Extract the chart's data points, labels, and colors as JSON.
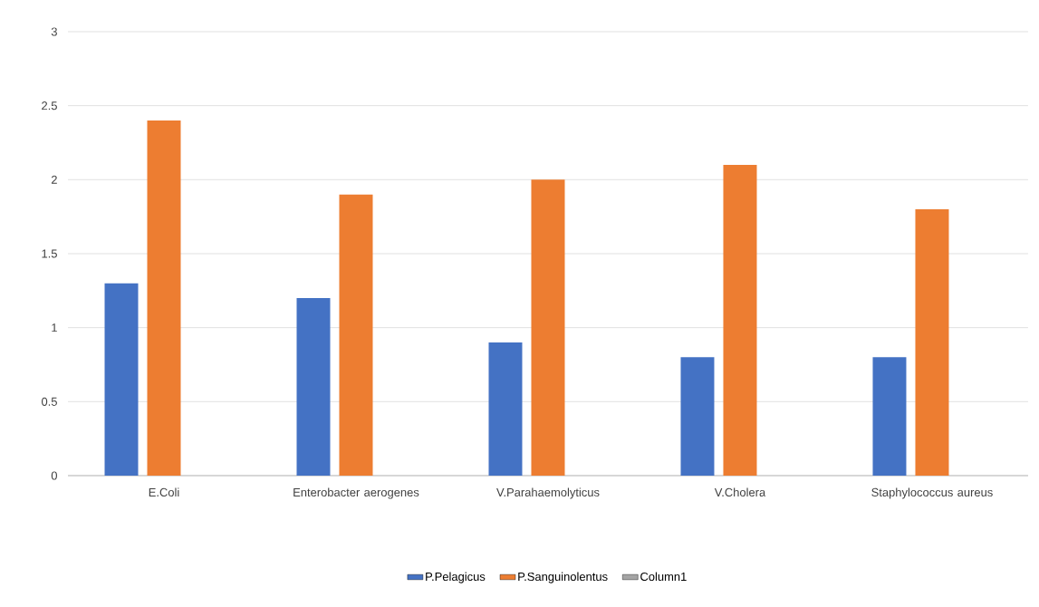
{
  "chart_data": {
    "type": "bar",
    "categories": [
      "E.Coli",
      "Enterobacter aerogenes",
      "V.Parahaemolyticus",
      "V.Cholera",
      "Staphylococcus aureus"
    ],
    "series": [
      {
        "name": "P.Pelagicus",
        "color": "#4472c4",
        "values": [
          1.3,
          1.2,
          0.9,
          0.8,
          0.8
        ]
      },
      {
        "name": "P.Sanguinolentus",
        "color": "#ed7d31",
        "values": [
          2.4,
          1.9,
          2.0,
          2.1,
          1.8
        ]
      },
      {
        "name": "Column1",
        "color": "#a5a5a5",
        "values": [
          null,
          null,
          null,
          null,
          null
        ]
      }
    ],
    "ylim": [
      0,
      3
    ],
    "yticks": [
      0,
      0.5,
      1,
      1.5,
      2,
      2.5,
      3
    ],
    "grid": "y",
    "legend": "bottom"
  }
}
